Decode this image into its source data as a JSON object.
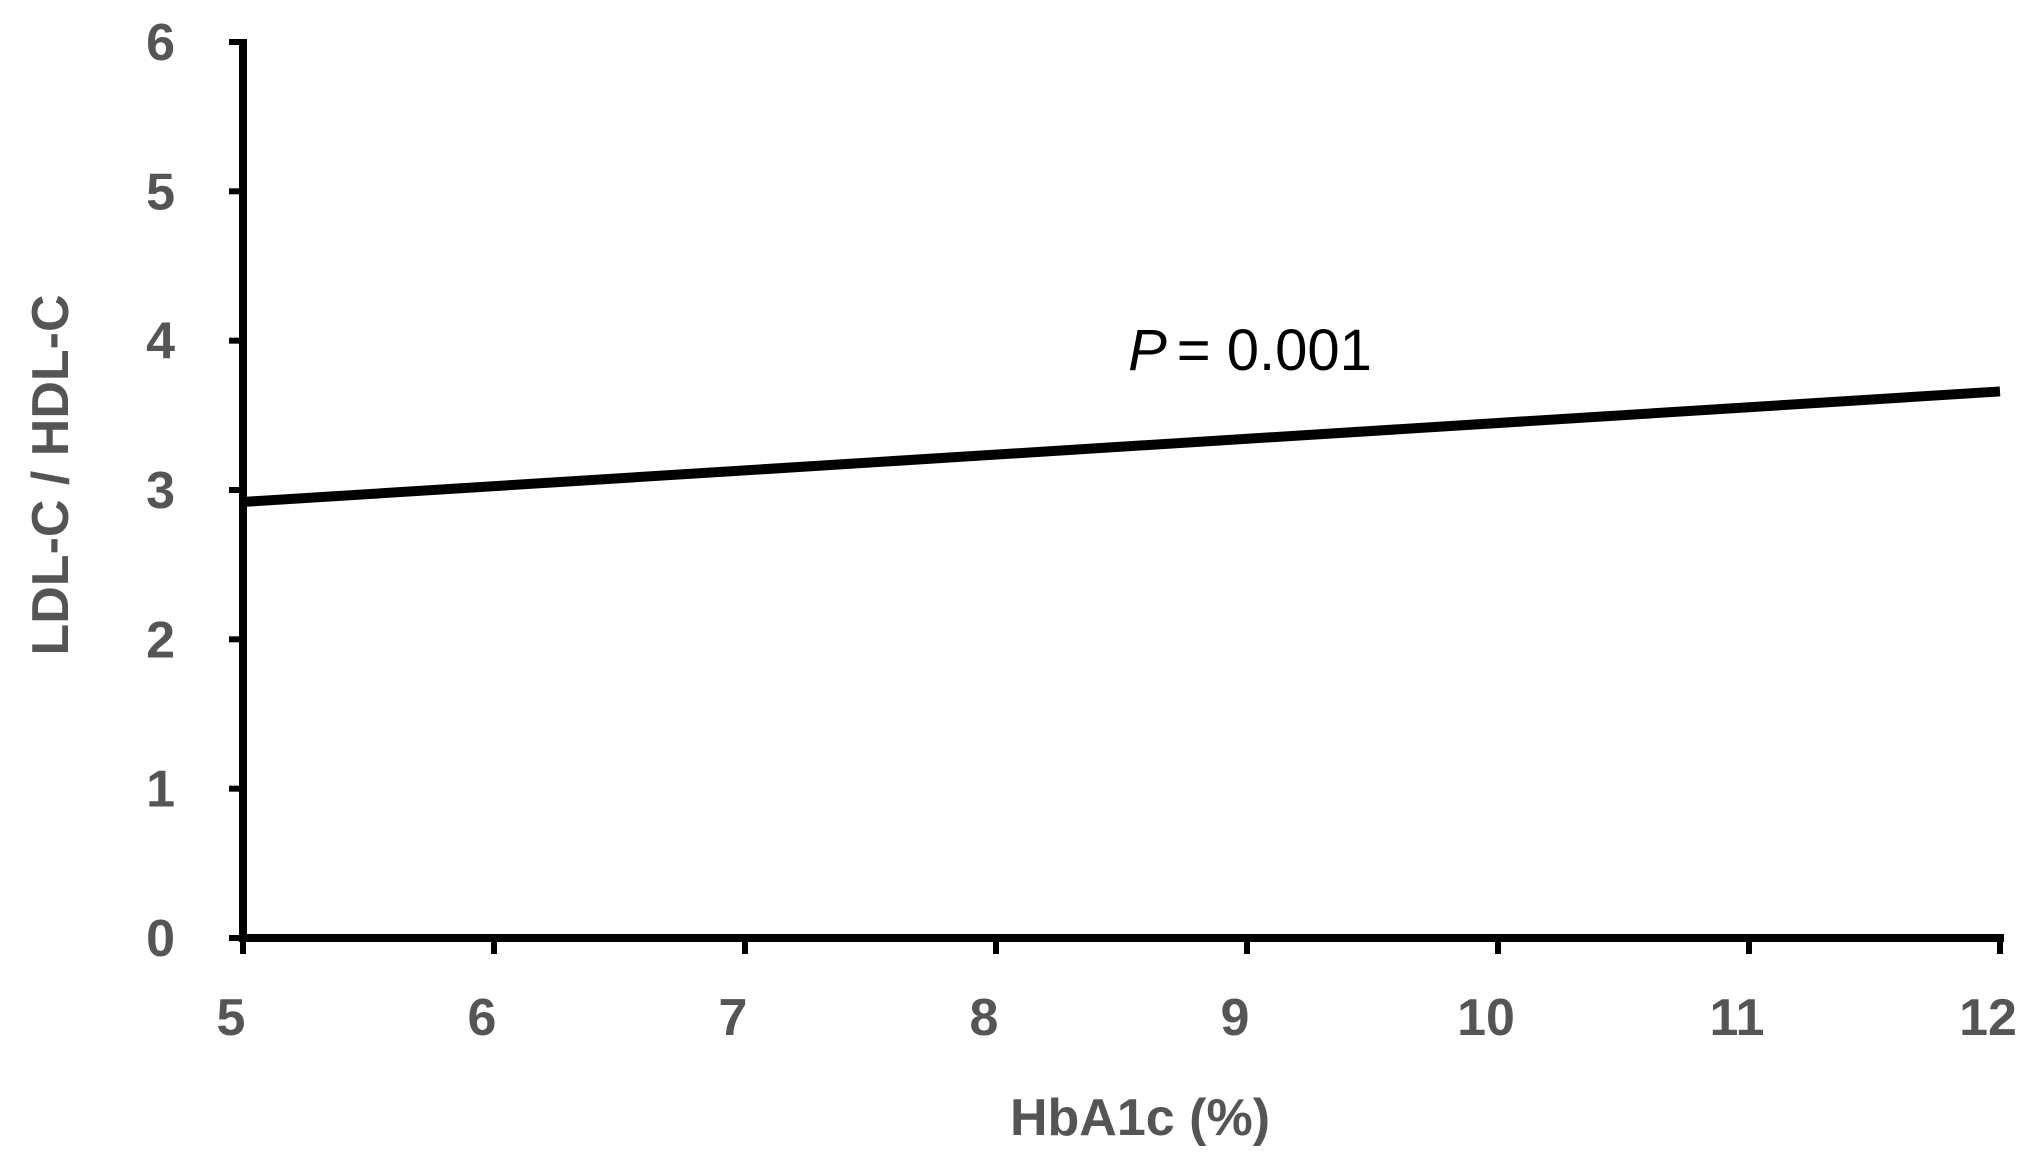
{
  "chart_data": {
    "type": "line",
    "title": "",
    "xlabel": "HbA1c (%)",
    "ylabel": "LDL-C / HDL-C",
    "xlim": [
      5,
      12
    ],
    "ylim": [
      0,
      6
    ],
    "x_ticks": [
      "5",
      "6",
      "7",
      "8",
      "9",
      "10",
      "11",
      "12"
    ],
    "y_ticks": [
      "0",
      "1",
      "2",
      "3",
      "4",
      "5",
      "6"
    ],
    "grid": false,
    "legend": "none",
    "series": [
      {
        "x": [
          5,
          12
        ],
        "y": [
          2.92,
          3.66
        ]
      }
    ],
    "annotations": [
      {
        "label_italic": "P",
        "label_rest": "= 0.001"
      }
    ],
    "colors": {
      "line": "#000000",
      "axis": "#000000",
      "tick_text": "#555555"
    }
  }
}
